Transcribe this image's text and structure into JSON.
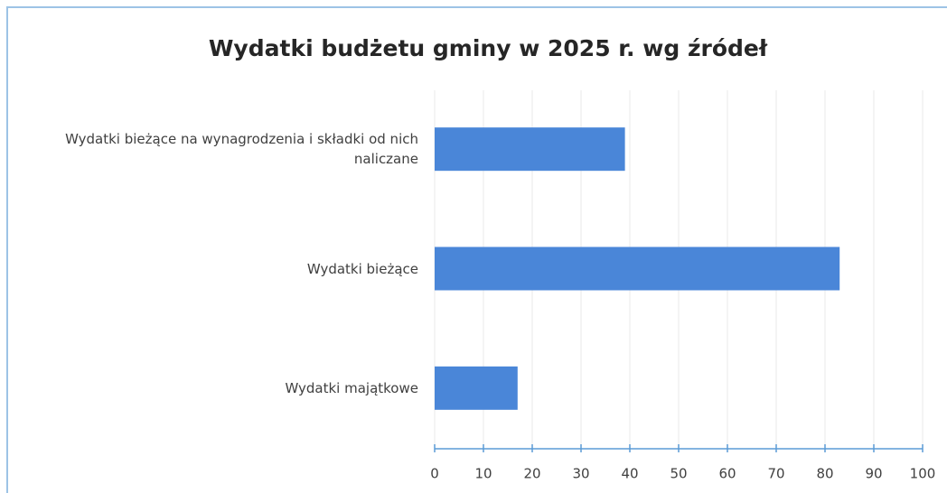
{
  "chart_data": {
    "type": "bar",
    "orientation": "horizontal",
    "title": "Wydatki budżetu gminy w 2025 r. wg źródeł",
    "categories": [
      "Wydatki bieżące na wynagrodzenia i składki od nich naliczane",
      "Wydatki bieżące",
      "Wydatki majątkowe"
    ],
    "values": [
      39,
      83,
      17
    ],
    "color": "#4a86d8",
    "xlim": [
      0,
      100
    ],
    "xticks": [
      0,
      10,
      20,
      30,
      40,
      50,
      60,
      70,
      80,
      90,
      100
    ],
    "grid": true
  }
}
